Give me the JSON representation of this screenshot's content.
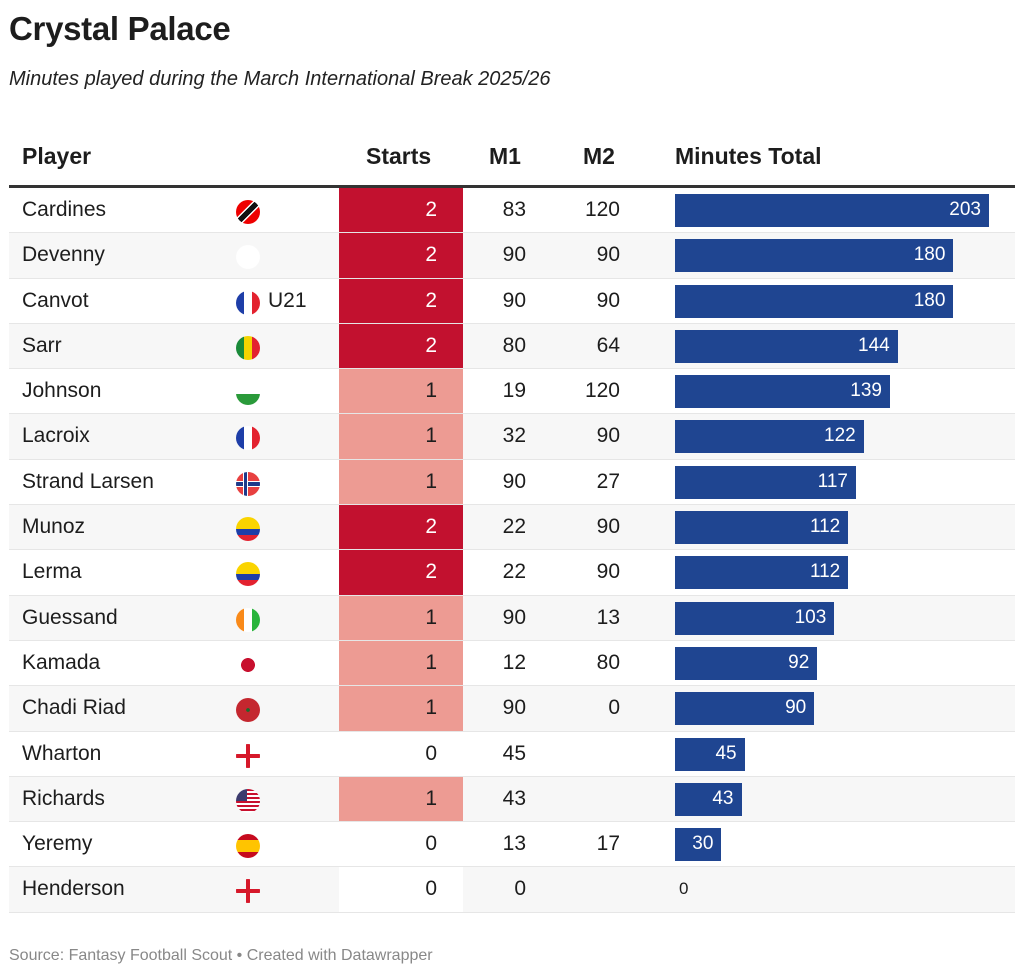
{
  "title": "Crystal Palace",
  "subtitle": "Minutes played during the March International Break 2025/26",
  "source": "Source: Fantasy Football Scout • Created with Datawrapper",
  "colors": {
    "starts_2": "#c2112f",
    "starts_1": "#ed9b93",
    "bar": "#1f4591",
    "header_rule": "#333333",
    "stripe": "#f7f7f7"
  },
  "chart_data": {
    "type": "table",
    "columns": [
      "Player",
      "Starts",
      "M1",
      "M2",
      "Minutes Total"
    ],
    "rows": [
      {
        "player": "Cardines",
        "flag": "trinidad-and-tobago",
        "starts": 2,
        "m1": 83,
        "m2": 120,
        "total": 203
      },
      {
        "player": "Devenny",
        "flag": "northern-ireland",
        "starts": 2,
        "m1": 90,
        "m2": 90,
        "total": 180
      },
      {
        "player": "Canvot",
        "flag": "france",
        "tag": "U21",
        "starts": 2,
        "m1": 90,
        "m2": 90,
        "total": 180
      },
      {
        "player": "Sarr",
        "flag": "senegal",
        "starts": 2,
        "m1": 80,
        "m2": 64,
        "total": 144
      },
      {
        "player": "Johnson",
        "flag": "wales",
        "starts": 1,
        "m1": 19,
        "m2": 120,
        "total": 139
      },
      {
        "player": "Lacroix",
        "flag": "france",
        "starts": 1,
        "m1": 32,
        "m2": 90,
        "total": 122
      },
      {
        "player": "Strand Larsen",
        "flag": "norway",
        "starts": 1,
        "m1": 90,
        "m2": 27,
        "total": 117
      },
      {
        "player": "Munoz",
        "flag": "colombia",
        "starts": 2,
        "m1": 22,
        "m2": 90,
        "total": 112
      },
      {
        "player": "Lerma",
        "flag": "colombia",
        "starts": 2,
        "m1": 22,
        "m2": 90,
        "total": 112
      },
      {
        "player": "Guessand",
        "flag": "ivory-coast",
        "starts": 1,
        "m1": 90,
        "m2": 13,
        "total": 103
      },
      {
        "player": "Kamada",
        "flag": "japan",
        "starts": 1,
        "m1": 12,
        "m2": 80,
        "total": 92
      },
      {
        "player": "Chadi Riad",
        "flag": "morocco",
        "starts": 1,
        "m1": 90,
        "m2": 0,
        "total": 90
      },
      {
        "player": "Wharton",
        "flag": "england",
        "starts": 0,
        "m1": 45,
        "m2": null,
        "total": 45
      },
      {
        "player": "Richards",
        "flag": "usa",
        "starts": 1,
        "m1": 43,
        "m2": null,
        "total": 43
      },
      {
        "player": "Yeremy",
        "flag": "spain",
        "starts": 0,
        "m1": 13,
        "m2": 17,
        "total": 30
      },
      {
        "player": "Henderson",
        "flag": "england",
        "starts": 0,
        "m1": 0,
        "m2": null,
        "total": 0
      }
    ],
    "bar_max": 203
  }
}
